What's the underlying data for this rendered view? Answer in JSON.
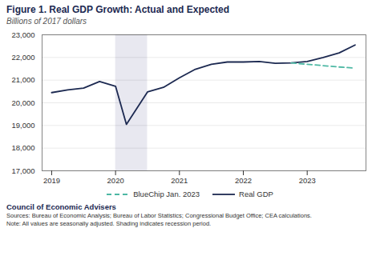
{
  "chart_data": {
    "type": "line",
    "title": "Figure 1. Real GDP Growth: Actual and Expected",
    "subtitle": "Billions of 2017 dollars",
    "series": [
      {
        "name": "Real GDP",
        "color": "#1c2951",
        "line_style": "solid",
        "x": [
          2019.0,
          2019.25,
          2019.5,
          2019.75,
          2020.0,
          2020.17,
          2020.5,
          2020.75,
          2021.0,
          2021.25,
          2021.5,
          2021.75,
          2022.0,
          2022.25,
          2022.5,
          2022.75,
          2023.0,
          2023.25,
          2023.5,
          2023.75
        ],
        "values": [
          20450,
          20570,
          20650,
          20940,
          20730,
          19050,
          20480,
          20680,
          21100,
          21480,
          21700,
          21800,
          21800,
          21820,
          21740,
          21760,
          21820,
          22000,
          22200,
          22550
        ]
      },
      {
        "name": "BlueChip Jan. 2023",
        "color": "#4db8a4",
        "line_style": "dashed",
        "x": [
          2022.75,
          2023.0,
          2023.25,
          2023.5,
          2023.75
        ],
        "values": [
          21760,
          21700,
          21640,
          21580,
          21530
        ]
      }
    ],
    "recession": {
      "start": 2020.0,
      "end": 2020.5,
      "color": "#e8e8f0"
    },
    "xlim": [
      2018.85,
      2023.92
    ],
    "xticks": [
      2019,
      2020,
      2021,
      2022,
      2023
    ],
    "ylim": [
      17000,
      23000
    ],
    "yticks": [
      {
        "value": 17000,
        "label": "17,000"
      },
      {
        "value": 18000,
        "label": "18,000"
      },
      {
        "value": 19000,
        "label": "19,000"
      },
      {
        "value": 20000,
        "label": "20,000"
      },
      {
        "value": 21000,
        "label": "21,000"
      },
      {
        "value": 22000,
        "label": "22,000"
      },
      {
        "value": 23000,
        "label": "23,000"
      }
    ],
    "grid": true,
    "legend": "bottom",
    "annotations": [
      "Council of Economic Advisers",
      "Sources: Bureau of Economic Analysis; Bureau of Labor Statistics; Congressional Budget Office; CEA calculations.",
      "Note: All values are seasonally adjusted. Shading indicates recession period."
    ]
  }
}
